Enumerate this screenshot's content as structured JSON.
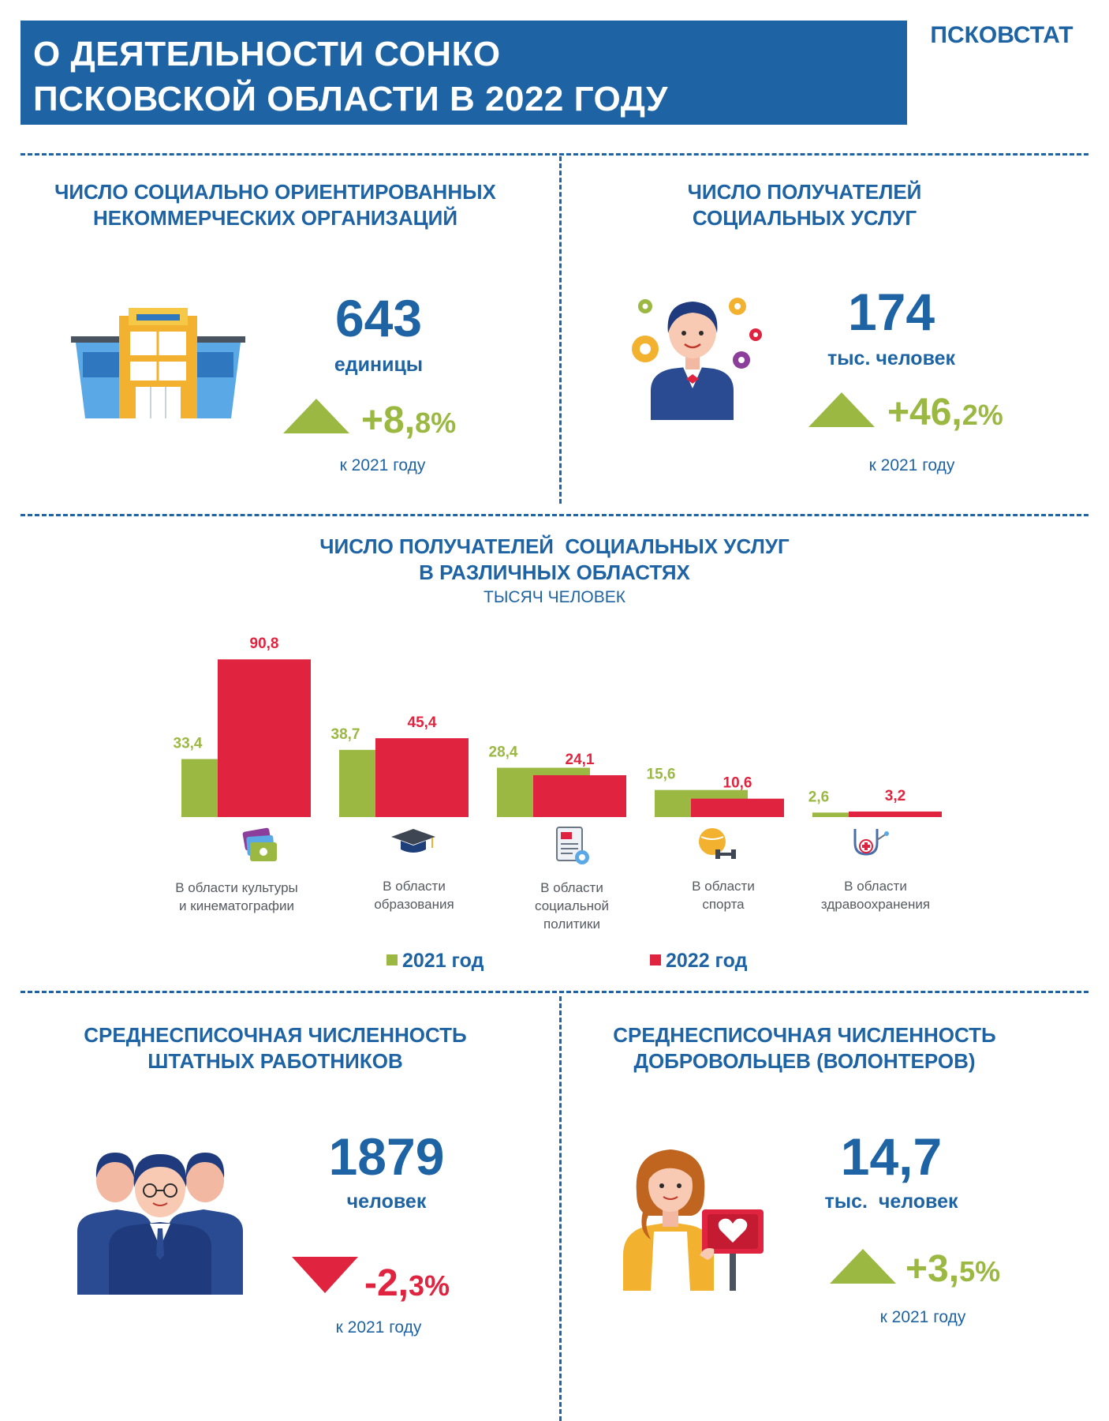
{
  "header": {
    "title_line1": "О ДЕЯТЕЛЬНОСТИ СОНКО",
    "title_line2": "ПСКОВСКОЙ ОБЛАСТИ В 2022 ГОДУ",
    "agency": "ПСКОВСТАТ"
  },
  "orgs": {
    "title_line1": "ЧИСЛО СОЦИАЛЬНО ОРИЕНТИРОВАННЫХ",
    "title_line2": "НЕКОММЕРЧЕСКИХ ОРГАНИЗАЦИЙ",
    "value": "643",
    "unit": "единицы",
    "change_main": "+8,",
    "change_small": "8%",
    "ref": "к 2021 году",
    "trend": "up",
    "icon": "building-icon"
  },
  "recipients": {
    "title_line1": "ЧИСЛО ПОЛУЧАТЕЛЕЙ",
    "title_line2": "СОЦИАЛЬНЫХ УСЛУГ",
    "value": "174",
    "unit": "тыс. человек",
    "change_main": "+46,",
    "change_small": "2%",
    "ref": "к 2021 году",
    "trend": "up",
    "icon": "person-gears-icon"
  },
  "chart_section": {
    "title_line1": "ЧИСЛО ПОЛУЧАТЕЛЕЙ  СОЦИАЛЬНЫХ УСЛУГ",
    "title_line2": "В РАЗЛИЧНЫХ ОБЛАСТЯХ",
    "subtitle": "ТЫСЯЧ ЧЕЛОВЕК",
    "categories_lines": [
      [
        "В области культуры",
        "и кинематографии"
      ],
      [
        "В области",
        "образования"
      ],
      [
        "В области",
        "социальной",
        "политики"
      ],
      [
        "В области",
        "спорта"
      ],
      [
        "В области",
        "здравоохранения"
      ]
    ],
    "category_icons": [
      "tickets-icon",
      "graduation-cap-icon",
      "document-icon",
      "sport-icon",
      "stethoscope-icon"
    ],
    "legend": [
      "2021 год",
      "2022 год"
    ]
  },
  "chart_data": {
    "type": "bar",
    "title": "ЧИСЛО ПОЛУЧАТЕЛЕЙ  СОЦИАЛЬНЫХ УСЛУГ В РАЗЛИЧНЫХ ОБЛАСТЯХ",
    "subtitle": "ТЫСЯЧ ЧЕЛОВЕК",
    "categories": [
      "В области культуры и кинематографии",
      "В области образования",
      "В области социальной политики",
      "В области спорта",
      "В области здравоохранения"
    ],
    "series": [
      {
        "name": "2021 год",
        "color": "#9bb843",
        "values": [
          33.4,
          38.7,
          28.4,
          15.6,
          2.6
        ],
        "labels": [
          "33,4",
          "38,7",
          "28,4",
          "15,6",
          "2,6"
        ]
      },
      {
        "name": "2022 год",
        "color": "#e0243f",
        "values": [
          90.8,
          45.4,
          24.1,
          10.6,
          3.2
        ],
        "labels": [
          "90,8",
          "45,4",
          "24,1",
          "10,6",
          "3,2"
        ]
      }
    ],
    "ylim": [
      0,
      100
    ],
    "grid": false,
    "legend_position": "bottom"
  },
  "staff": {
    "title_line1": "СРЕДНЕСПИСОЧНАЯ ЧИСЛЕННОСТЬ",
    "title_line2": "ШТАТНЫХ РАБОТНИКОВ",
    "value": "1879",
    "unit": "человек",
    "change_main": "-2,",
    "change_small": "3%",
    "ref": "к 2021 году",
    "trend": "down",
    "icon": "staff-group-icon"
  },
  "volunteers": {
    "title_line1": "СРЕДНЕСПИСОЧНАЯ ЧИСЛЕННОСТЬ",
    "title_line2": "ДОБРОВОЛЬЦЕВ (ВОЛОНТЕРОВ)",
    "value": "14,7",
    "unit": "тыс.  человек",
    "change_main": "+3,",
    "change_small": "5%",
    "ref": "к 2021 году",
    "trend": "up",
    "icon": "volunteer-icon"
  },
  "colors": {
    "brand_blue": "#1e63a3",
    "green": "#9bb843",
    "red": "#e0243f"
  }
}
